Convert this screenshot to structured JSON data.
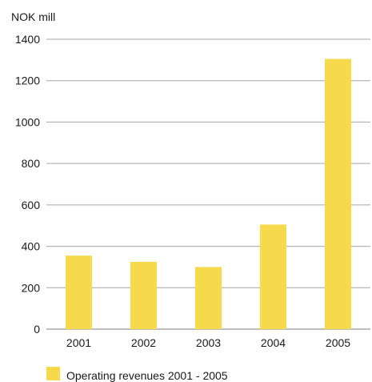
{
  "chart_data": {
    "type": "bar",
    "unit_label": "NOK mill",
    "categories": [
      "2001",
      "2002",
      "2003",
      "2004",
      "2005"
    ],
    "series": [
      {
        "name": "Operating revenues 2001 - 2005",
        "values": [
          355,
          325,
          300,
          505,
          1305
        ],
        "color": "#f7d94c"
      }
    ],
    "ylim": [
      0,
      1400
    ],
    "yticks": [
      0,
      200,
      400,
      600,
      800,
      1000,
      1200,
      1400
    ],
    "grid": true,
    "legend_position": "bottom-left"
  }
}
